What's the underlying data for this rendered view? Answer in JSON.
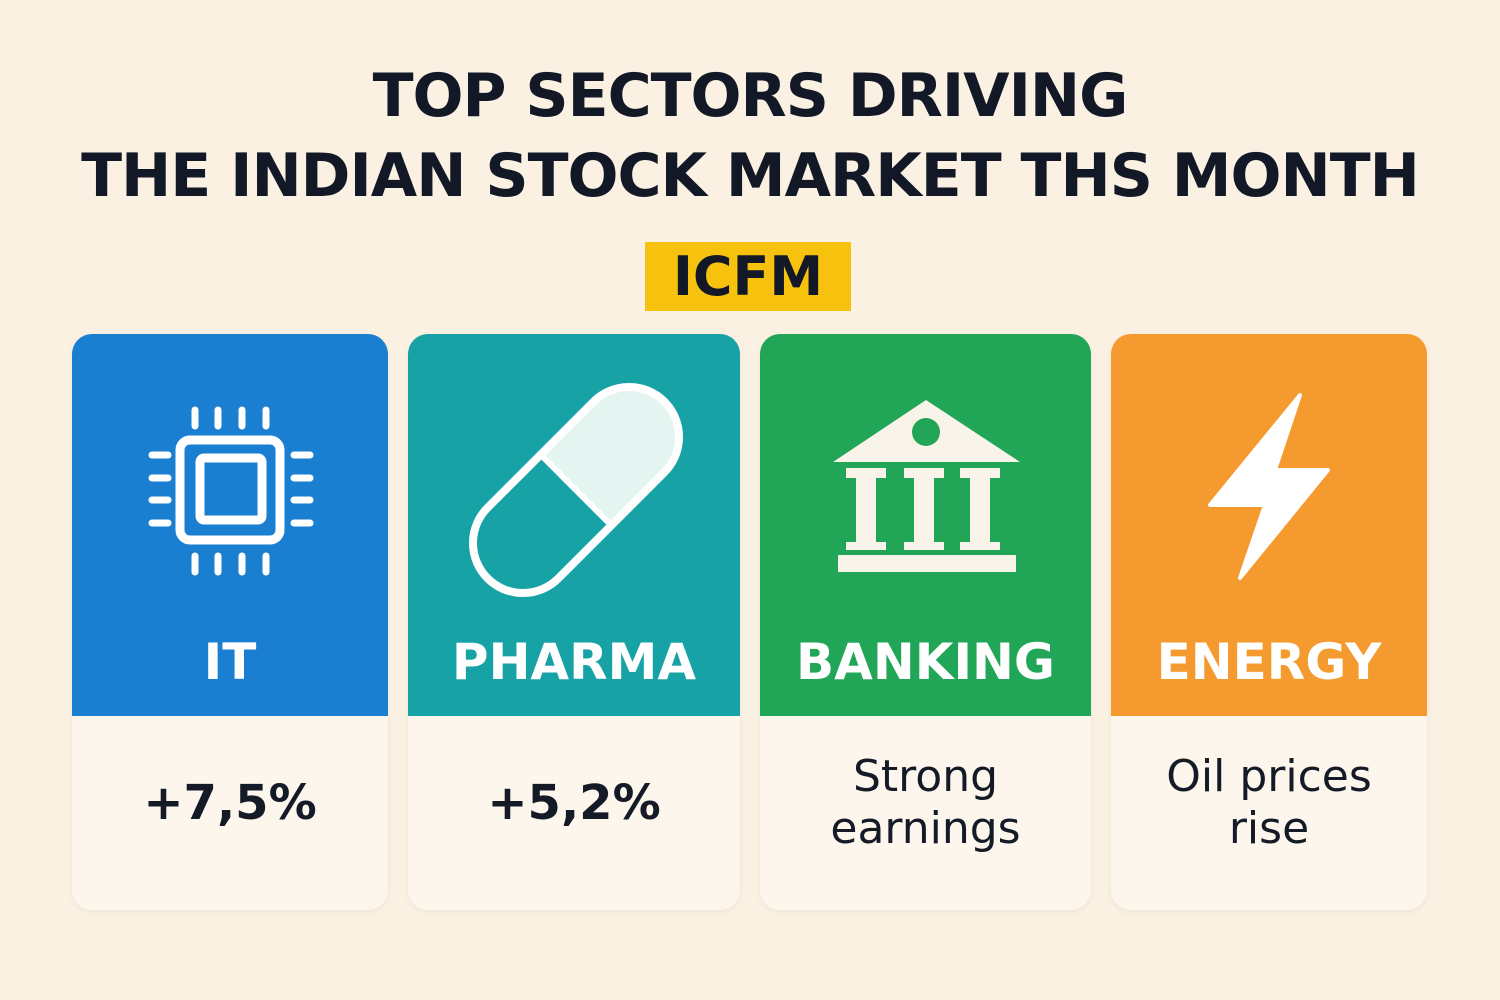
{
  "header": {
    "title_lines": [
      "TOP SECTORS DRIVING",
      "THE INDIAN STOCK MARKET THS MONTH"
    ],
    "badge": "ICFM"
  },
  "cards": [
    {
      "label": "IT",
      "detail": "+7,5%"
    },
    {
      "label": "PHARMA",
      "detail": "+5,2%"
    },
    {
      "label": "BANKING",
      "detail": "Strong earnings"
    },
    {
      "label": "ENERGY",
      "detail": "Oil prices rise"
    }
  ]
}
